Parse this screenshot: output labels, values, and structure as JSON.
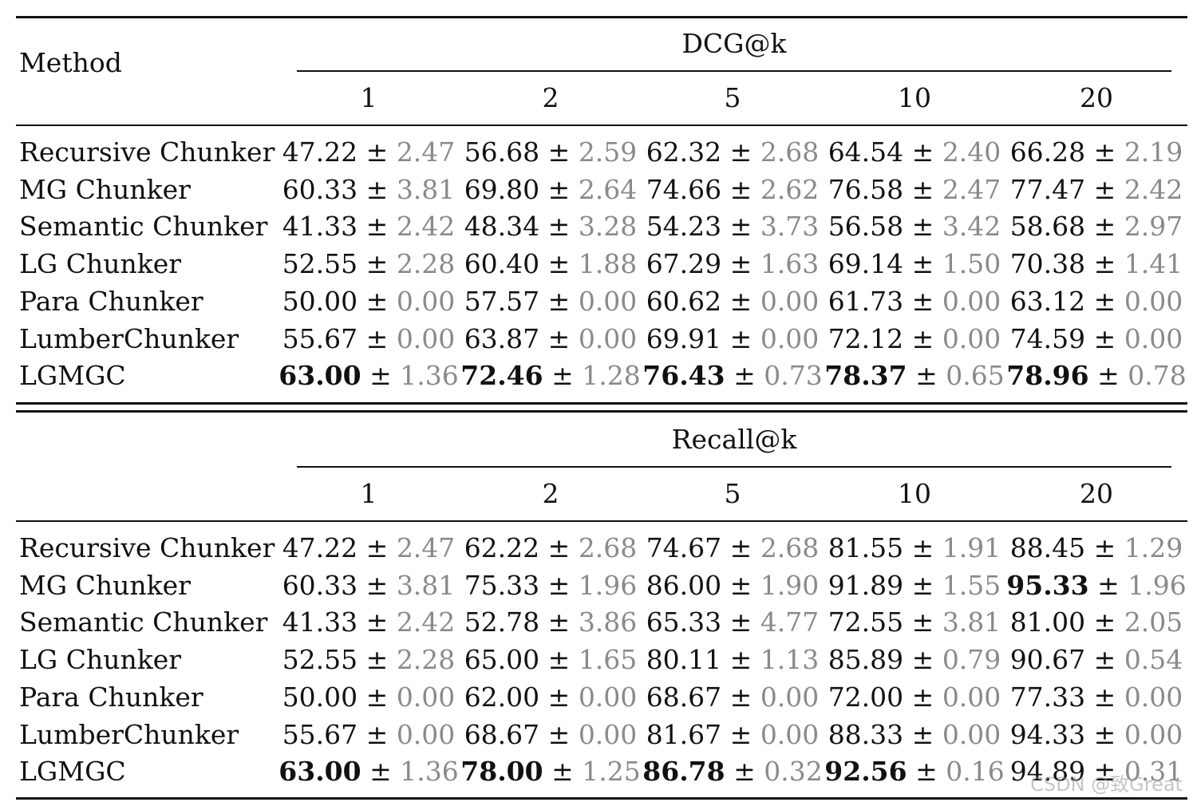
{
  "table": {
    "method_header": "Method",
    "k_values": [
      "1",
      "2",
      "5",
      "10",
      "20"
    ],
    "sections": [
      {
        "metric": "DCG@k",
        "rows": [
          {
            "method": "Recursive Chunker",
            "cells": [
              {
                "mean": "47.22",
                "sd": "2.47",
                "bold": false
              },
              {
                "mean": "56.68",
                "sd": "2.59",
                "bold": false
              },
              {
                "mean": "62.32",
                "sd": "2.68",
                "bold": false
              },
              {
                "mean": "64.54",
                "sd": "2.40",
                "bold": false
              },
              {
                "mean": "66.28",
                "sd": "2.19",
                "bold": false
              }
            ]
          },
          {
            "method": "MG Chunker",
            "cells": [
              {
                "mean": "60.33",
                "sd": "3.81",
                "bold": false
              },
              {
                "mean": "69.80",
                "sd": "2.64",
                "bold": false
              },
              {
                "mean": "74.66",
                "sd": "2.62",
                "bold": false
              },
              {
                "mean": "76.58",
                "sd": "2.47",
                "bold": false
              },
              {
                "mean": "77.47",
                "sd": "2.42",
                "bold": false
              }
            ]
          },
          {
            "method": "Semantic Chunker",
            "cells": [
              {
                "mean": "41.33",
                "sd": "2.42",
                "bold": false
              },
              {
                "mean": "48.34",
                "sd": "3.28",
                "bold": false
              },
              {
                "mean": "54.23",
                "sd": "3.73",
                "bold": false
              },
              {
                "mean": "56.58",
                "sd": "3.42",
                "bold": false
              },
              {
                "mean": "58.68",
                "sd": "2.97",
                "bold": false
              }
            ]
          },
          {
            "method": "LG Chunker",
            "cells": [
              {
                "mean": "52.55",
                "sd": "2.28",
                "bold": false
              },
              {
                "mean": "60.40",
                "sd": "1.88",
                "bold": false
              },
              {
                "mean": "67.29",
                "sd": "1.63",
                "bold": false
              },
              {
                "mean": "69.14",
                "sd": "1.50",
                "bold": false
              },
              {
                "mean": "70.38",
                "sd": "1.41",
                "bold": false
              }
            ]
          },
          {
            "method": "Para Chunker",
            "cells": [
              {
                "mean": "50.00",
                "sd": "0.00",
                "bold": false
              },
              {
                "mean": "57.57",
                "sd": "0.00",
                "bold": false
              },
              {
                "mean": "60.62",
                "sd": "0.00",
                "bold": false
              },
              {
                "mean": "61.73",
                "sd": "0.00",
                "bold": false
              },
              {
                "mean": "63.12",
                "sd": "0.00",
                "bold": false
              }
            ]
          },
          {
            "method": "LumberChunker",
            "cells": [
              {
                "mean": "55.67",
                "sd": "0.00",
                "bold": false
              },
              {
                "mean": "63.87",
                "sd": "0.00",
                "bold": false
              },
              {
                "mean": "69.91",
                "sd": "0.00",
                "bold": false
              },
              {
                "mean": "72.12",
                "sd": "0.00",
                "bold": false
              },
              {
                "mean": "74.59",
                "sd": "0.00",
                "bold": false
              }
            ]
          },
          {
            "method": "LGMGC",
            "cells": [
              {
                "mean": "63.00",
                "sd": "1.36",
                "bold": true
              },
              {
                "mean": "72.46",
                "sd": "1.28",
                "bold": true
              },
              {
                "mean": "76.43",
                "sd": "0.73",
                "bold": true
              },
              {
                "mean": "78.37",
                "sd": "0.65",
                "bold": true
              },
              {
                "mean": "78.96",
                "sd": "0.78",
                "bold": true
              }
            ]
          }
        ]
      },
      {
        "metric": "Recall@k",
        "rows": [
          {
            "method": "Recursive Chunker",
            "cells": [
              {
                "mean": "47.22",
                "sd": "2.47",
                "bold": false
              },
              {
                "mean": "62.22",
                "sd": "2.68",
                "bold": false
              },
              {
                "mean": "74.67",
                "sd": "2.68",
                "bold": false
              },
              {
                "mean": "81.55",
                "sd": "1.91",
                "bold": false
              },
              {
                "mean": "88.45",
                "sd": "1.29",
                "bold": false
              }
            ]
          },
          {
            "method": "MG Chunker",
            "cells": [
              {
                "mean": "60.33",
                "sd": "3.81",
                "bold": false
              },
              {
                "mean": "75.33",
                "sd": "1.96",
                "bold": false
              },
              {
                "mean": "86.00",
                "sd": "1.90",
                "bold": false
              },
              {
                "mean": "91.89",
                "sd": "1.55",
                "bold": false
              },
              {
                "mean": "95.33",
                "sd": "1.96",
                "bold": true
              }
            ]
          },
          {
            "method": "Semantic Chunker",
            "cells": [
              {
                "mean": "41.33",
                "sd": "2.42",
                "bold": false
              },
              {
                "mean": "52.78",
                "sd": "3.86",
                "bold": false
              },
              {
                "mean": "65.33",
                "sd": "4.77",
                "bold": false
              },
              {
                "mean": "72.55",
                "sd": "3.81",
                "bold": false
              },
              {
                "mean": "81.00",
                "sd": "2.05",
                "bold": false
              }
            ]
          },
          {
            "method": "LG Chunker",
            "cells": [
              {
                "mean": "52.55",
                "sd": "2.28",
                "bold": false
              },
              {
                "mean": "65.00",
                "sd": "1.65",
                "bold": false
              },
              {
                "mean": "80.11",
                "sd": "1.13",
                "bold": false
              },
              {
                "mean": "85.89",
                "sd": "0.79",
                "bold": false
              },
              {
                "mean": "90.67",
                "sd": "0.54",
                "bold": false
              }
            ]
          },
          {
            "method": "Para Chunker",
            "cells": [
              {
                "mean": "50.00",
                "sd": "0.00",
                "bold": false
              },
              {
                "mean": "62.00",
                "sd": "0.00",
                "bold": false
              },
              {
                "mean": "68.67",
                "sd": "0.00",
                "bold": false
              },
              {
                "mean": "72.00",
                "sd": "0.00",
                "bold": false
              },
              {
                "mean": "77.33",
                "sd": "0.00",
                "bold": false
              }
            ]
          },
          {
            "method": "LumberChunker",
            "cells": [
              {
                "mean": "55.67",
                "sd": "0.00",
                "bold": false
              },
              {
                "mean": "68.67",
                "sd": "0.00",
                "bold": false
              },
              {
                "mean": "81.67",
                "sd": "0.00",
                "bold": false
              },
              {
                "mean": "88.33",
                "sd": "0.00",
                "bold": false
              },
              {
                "mean": "94.33",
                "sd": "0.00",
                "bold": false
              }
            ]
          },
          {
            "method": "LGMGC",
            "cells": [
              {
                "mean": "63.00",
                "sd": "1.36",
                "bold": true
              },
              {
                "mean": "78.00",
                "sd": "1.25",
                "bold": true
              },
              {
                "mean": "86.78",
                "sd": "0.32",
                "bold": true
              },
              {
                "mean": "92.56",
                "sd": "0.16",
                "bold": true
              },
              {
                "mean": "94.89",
                "sd": "0.31",
                "bold": false
              }
            ]
          }
        ]
      }
    ]
  },
  "watermark": "CSDN @致Great"
}
